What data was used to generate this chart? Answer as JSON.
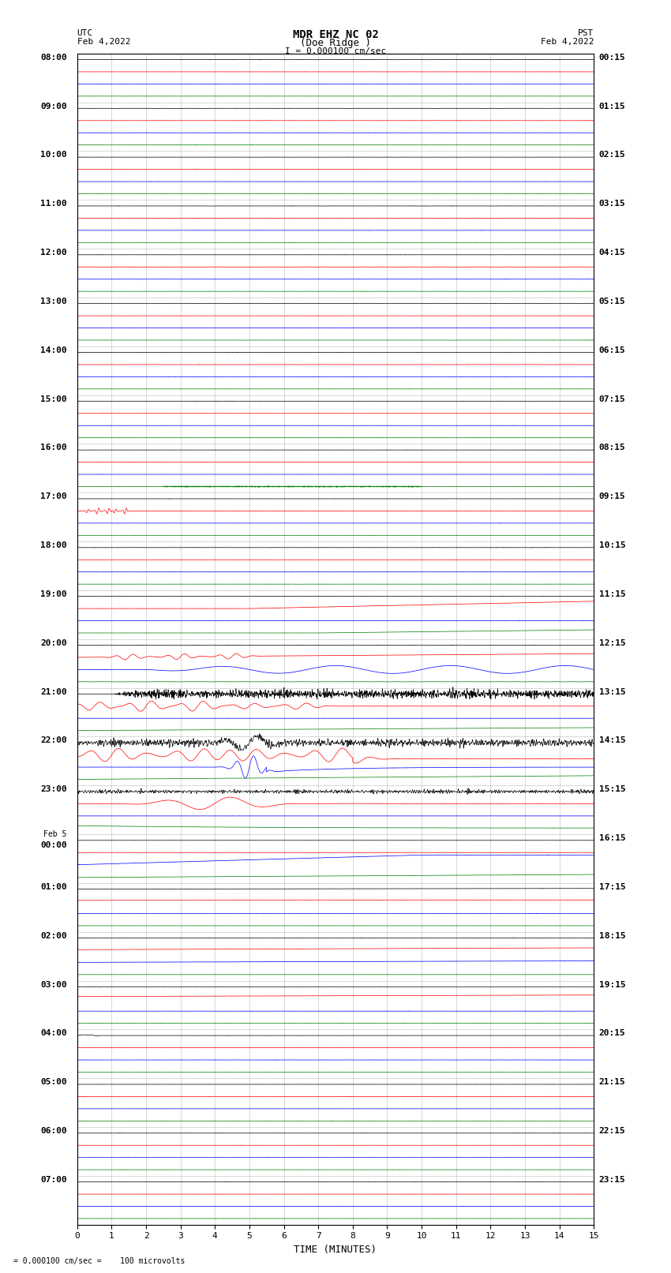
{
  "title_line1": "MDR EHZ NC 02",
  "title_line2": "(Doe Ridge )",
  "scale_text": "I = 0.000100 cm/sec",
  "left_label_line1": "UTC",
  "left_label_line2": "Feb 4,2022",
  "right_label_line1": "PST",
  "right_label_line2": "Feb 4,2022",
  "bottom_label": "TIME (MINUTES)",
  "bottom_note": "= 0.000100 cm/sec =    100 microvolts",
  "utc_times": [
    "08:00",
    "09:00",
    "10:00",
    "11:00",
    "12:00",
    "13:00",
    "14:00",
    "15:00",
    "16:00",
    "17:00",
    "18:00",
    "19:00",
    "20:00",
    "21:00",
    "22:00",
    "23:00",
    "Feb 5\n00:00",
    "01:00",
    "02:00",
    "03:00",
    "04:00",
    "05:00",
    "06:00",
    "07:00"
  ],
  "pst_times": [
    "00:15",
    "01:15",
    "02:15",
    "03:15",
    "04:15",
    "05:15",
    "06:15",
    "07:15",
    "08:15",
    "09:15",
    "10:15",
    "11:15",
    "12:15",
    "13:15",
    "14:15",
    "15:15",
    "16:15",
    "17:15",
    "18:15",
    "19:15",
    "20:15",
    "21:15",
    "22:15",
    "23:15"
  ],
  "trace_colors": [
    "black",
    "red",
    "blue",
    "green"
  ],
  "bg_color": "#ffffff",
  "grid_color": "#aaaaaa",
  "axis_color": "#000000",
  "x_ticks": [
    0,
    1,
    2,
    3,
    4,
    5,
    6,
    7,
    8,
    9,
    10,
    11,
    12,
    13,
    14,
    15
  ],
  "x_min": 0,
  "x_max": 15,
  "num_rows": 24,
  "traces_per_row": 4,
  "seed": 42
}
